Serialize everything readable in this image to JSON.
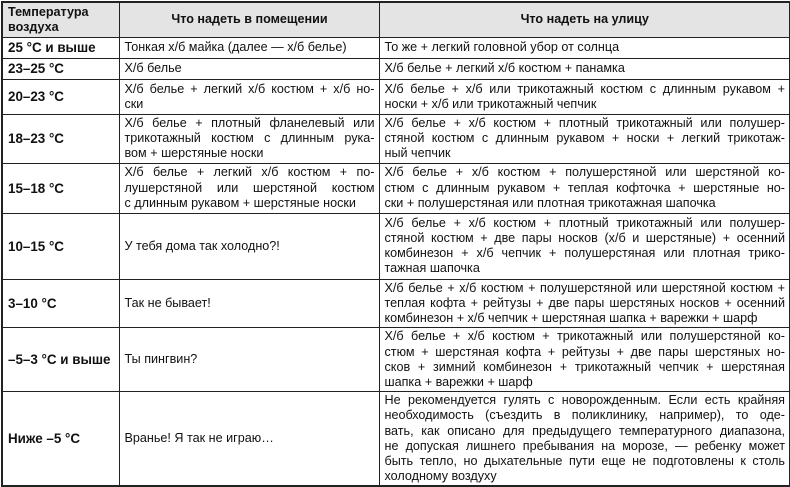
{
  "headers": [
    "Температура воздуха",
    "Что надеть в помещении",
    "Что надеть на улицу"
  ],
  "rows": [
    {
      "temp": "25 °C и выше",
      "indoor": [
        "Тонкая х/б майка (далее — х/б белье)"
      ],
      "outdoor": [
        "То же + легкий головной убор от солнца"
      ]
    },
    {
      "temp": "23–25 °C",
      "indoor": [
        "Х/б белье"
      ],
      "outdoor": [
        "Х/б белье + легкий х/б костюм + панамка"
      ]
    },
    {
      "temp": "20–23 °C",
      "indoor": [
        "Х/б белье + легкий х/б костюм + х/б но-",
        "ски"
      ],
      "outdoor": [
        "Х/б белье + х/б или трикотажный костюм с длинным рукавом +",
        "носки + х/б или трикотажный чепчик"
      ]
    },
    {
      "temp": "18–23 °C",
      "indoor": [
        "Х/б белье + плотный фланелевый или",
        "трикотажный костюм с длинным рука-",
        "вом + шерстяные носки"
      ],
      "outdoor": [
        "Х/б белье + х/б костюм + плотный трикотажный или полушер-",
        "стяной костюм с длинным рукавом + носки + легкий трикотаж-",
        "ный чепчик"
      ]
    },
    {
      "temp": "15–18 °C",
      "indoor": [
        "Х/б белье + легкий х/б костюм + по-",
        "лушерстяной или шерстяной костюм",
        "с длинным рукавом + шерстяные носки"
      ],
      "outdoor": [
        "Х/б белье + х/б костюм + полушерстяной или шерстяной ко-",
        "стюм с длинным рукавом + теплая кофточка + шерстяные но-",
        "ски + полушерстяная или плотная трикотажная шапочка"
      ]
    },
    {
      "temp": "10–15 °C",
      "indoor": [
        "У тебя дома так холодно?!"
      ],
      "outdoor": [
        "Х/б белье + х/б костюм + плотный трикотажный или полушер-",
        "стяной костюм + две пары носков (х/б и шерстяные) + осенний",
        "комбинезон + х/б чепчик + полушерстяная или плотная трико-",
        "тажная шапочка"
      ]
    },
    {
      "temp": "3–10 °C",
      "indoor": [
        "Так не бывает!"
      ],
      "outdoor": [
        "Х/б белье + х/б костюм + полушерстяной или шерстяной костюм +",
        "теплая кофта + рейтузы + две пары шерстяных носков + осенний",
        "комбинезон + х/б чепчик + шерстяная шапка + варежки + шарф"
      ]
    },
    {
      "temp": "–5–3 °C и выше",
      "indoor": [
        "Ты пингвин?"
      ],
      "outdoor": [
        "Х/б белье + х/б костюм + трикотажный или полушерстяной ко-",
        "стюм + шерстяная кофта + рейтузы + две пары шерстяных но-",
        "сков + зимний комбинезон + трикотажный чепчик + шерстяная",
        "шапка + варежки + шарф"
      ]
    },
    {
      "temp": "Ниже –5 °C",
      "indoor": [
        "Вранье! Я так не играю…"
      ],
      "outdoor": [
        "Не рекомендуется гулять с новорожденным. Если есть крайняя",
        "необходимость (съездить в поликлинику, например), то оде-",
        "вать, как описано для предыдущего температурного диапазона,",
        "не допуская лишнего пребывания на морозе, — ребенку может",
        "быть тепло, но дыхательные пути еще не подготовлены к столь",
        "холодному воздуху"
      ]
    }
  ]
}
